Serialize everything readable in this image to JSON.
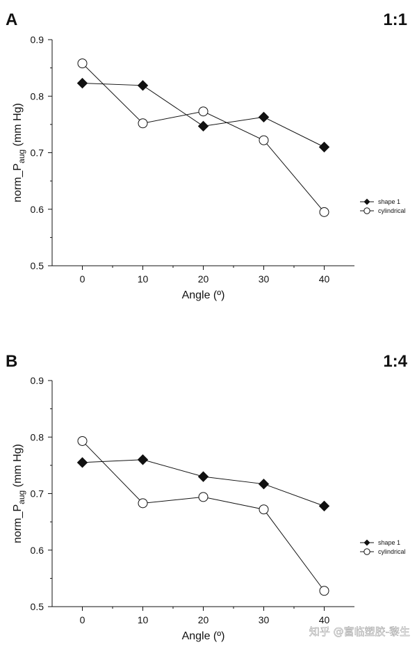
{
  "chart_data": [
    {
      "type": "line",
      "panel": "A",
      "title": "1:1",
      "xlabel": "Angle (º)",
      "ylabel": "norm_P",
      "ylabel_sub": "aug",
      "ylabel_units": " (mm Hg)",
      "x": [
        0,
        10,
        20,
        30,
        40
      ],
      "x_ticks": [
        "0",
        "10",
        "20",
        "30",
        "40"
      ],
      "y_ticks": [
        "0.5",
        "0.6",
        "0.7",
        "0.8",
        "0.9"
      ],
      "ylim": [
        0.5,
        0.9
      ],
      "xlim": [
        -5,
        45
      ],
      "legend_position": "right",
      "series": [
        {
          "name": "shape 1",
          "marker": "diamond",
          "values": [
            0.823,
            0.819,
            0.747,
            0.763,
            0.71
          ]
        },
        {
          "name": "cylindrical",
          "marker": "circle",
          "values": [
            0.858,
            0.752,
            0.773,
            0.722,
            0.595
          ]
        }
      ]
    },
    {
      "type": "line",
      "panel": "B",
      "title": "1:4",
      "xlabel": "Angle (º)",
      "ylabel": "norm_P",
      "ylabel_sub": "aug",
      "ylabel_units": " (mm Hg)",
      "x": [
        0,
        10,
        20,
        30,
        40
      ],
      "x_ticks": [
        "0",
        "10",
        "20",
        "30",
        "40"
      ],
      "y_ticks": [
        "0.5",
        "0.6",
        "0.7",
        "0.8",
        "0.9"
      ],
      "ylim": [
        0.5,
        0.9
      ],
      "xlim": [
        -5,
        45
      ],
      "legend_position": "right",
      "series": [
        {
          "name": "shape 1",
          "marker": "diamond",
          "values": [
            0.755,
            0.76,
            0.73,
            0.717,
            0.678
          ]
        },
        {
          "name": "cylindrical",
          "marker": "circle",
          "values": [
            0.793,
            0.683,
            0.694,
            0.672,
            0.528
          ]
        }
      ]
    }
  ],
  "watermark": "知乎 @富临塑胶-黎生"
}
